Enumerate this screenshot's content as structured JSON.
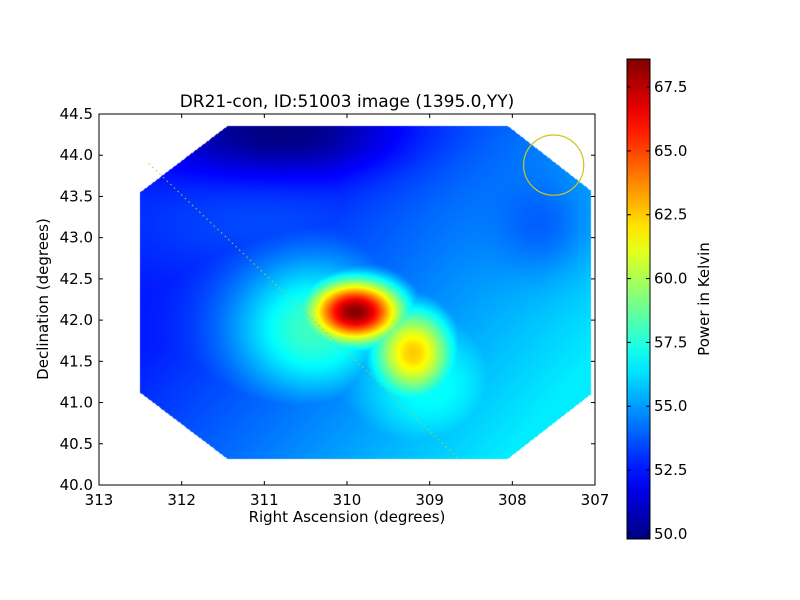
{
  "chart_data": {
    "type": "heatmap",
    "title": "DR21-con, ID:51003 image (1395.0,YY)",
    "xlabel": "Right Ascension (degrees)",
    "ylabel": "Declination (degrees)",
    "xlim": [
      313,
      307
    ],
    "ylim": [
      40.0,
      44.5
    ],
    "x_ticks": [
      "313",
      "312",
      "311",
      "310",
      "309",
      "308",
      "307"
    ],
    "y_ticks": [
      "40.0",
      "40.5",
      "41.0",
      "41.5",
      "42.0",
      "42.5",
      "43.0",
      "43.5",
      "44.0",
      "44.5"
    ],
    "colorbar": {
      "label": "Power in Kelvin",
      "range": [
        49.8,
        68.6
      ],
      "ticks": [
        "50.0",
        "52.5",
        "55.0",
        "57.5",
        "60.0",
        "62.5",
        "65.0",
        "67.5"
      ],
      "colormap": "jet"
    },
    "background_level": 52.5,
    "gradient": [
      {
        "ra": 308.0,
        "dec": 40.5,
        "value": 56.5
      },
      {
        "ra": 312.0,
        "dec": 44.0,
        "value": 51.5
      }
    ],
    "sources": [
      {
        "ra": 309.9,
        "dec": 42.1,
        "peak": 68.5,
        "sigma_ra": 0.42,
        "sigma_dec": 0.28
      },
      {
        "ra": 309.2,
        "dec": 41.6,
        "peak": 62.5,
        "sigma_ra": 0.38,
        "sigma_dec": 0.42
      },
      {
        "ra": 310.4,
        "dec": 41.9,
        "peak": 58.0,
        "sigma_ra": 0.75,
        "sigma_dec": 0.65
      },
      {
        "ra": 309.0,
        "dec": 41.2,
        "peak": 57.0,
        "sigma_ra": 0.9,
        "sigma_dec": 0.8
      },
      {
        "ra": 308.3,
        "dec": 40.8,
        "peak": 55.5,
        "sigma_ra": 0.9,
        "sigma_dec": 0.5
      },
      {
        "ra": 311.0,
        "dec": 43.2,
        "peak": 53.5,
        "sigma_ra": 1.3,
        "sigma_dec": 0.5
      }
    ],
    "cold_regions": [
      {
        "ra": 310.8,
        "dec": 44.25,
        "depth": 2.8,
        "sigma_ra": 1.0,
        "sigma_dec": 0.35
      },
      {
        "ra": 307.6,
        "dec": 43.1,
        "depth": 1.2,
        "sigma_ra": 0.4,
        "sigma_dec": 0.4
      }
    ],
    "valid_region": [
      {
        "ra": 311.45,
        "dec": 44.35
      },
      {
        "ra": 308.05,
        "dec": 44.35
      },
      {
        "ra": 307.05,
        "dec": 43.57
      },
      {
        "ra": 307.05,
        "dec": 41.1
      },
      {
        "ra": 308.05,
        "dec": 40.32
      },
      {
        "ra": 311.45,
        "dec": 40.32
      },
      {
        "ra": 312.5,
        "dec": 41.12
      },
      {
        "ra": 312.5,
        "dec": 43.55
      }
    ],
    "annotations": [
      {
        "type": "beam-circle",
        "ra": 307.5,
        "dec": 43.88,
        "radius_deg": 0.365,
        "color": "#c8c81e"
      },
      {
        "type": "dotted-line",
        "from": {
          "ra": 312.4,
          "dec": 43.9
        },
        "to": {
          "ra": 308.65,
          "dec": 40.32
        },
        "color": "#c8c81e"
      }
    ]
  }
}
